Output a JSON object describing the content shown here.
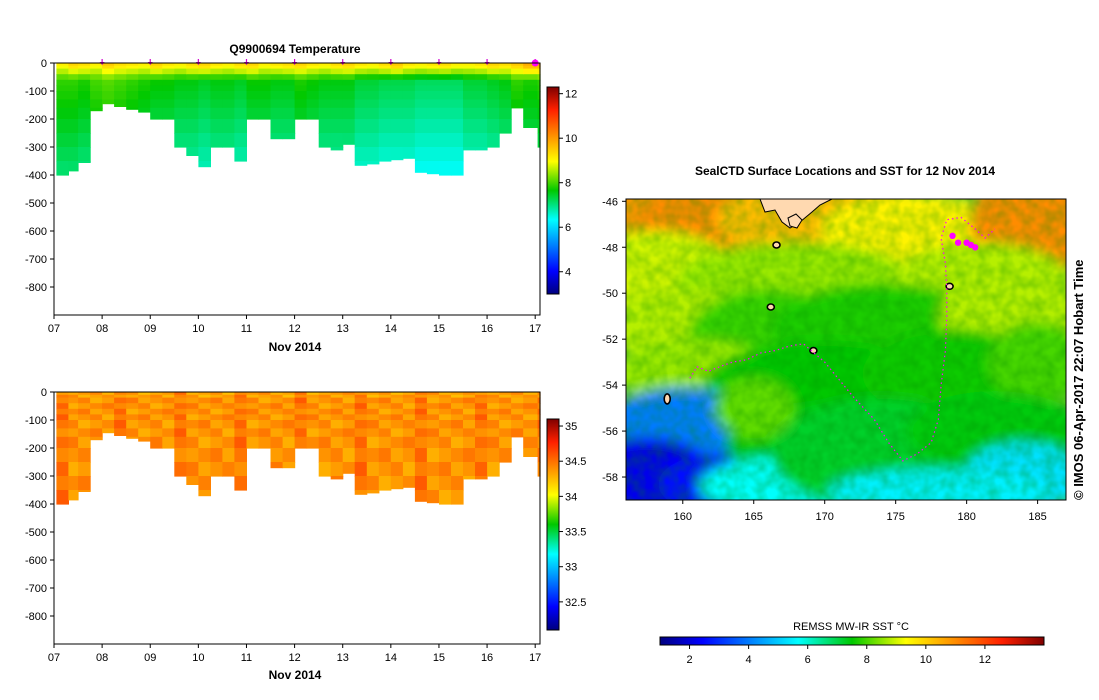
{
  "chart_data": [
    {
      "type": "heatmap",
      "title": "Q9900694  Temperature",
      "xlabel": "Nov 2014",
      "ylabel": "",
      "x_ticks": [
        "07",
        "08",
        "09",
        "10",
        "11",
        "12",
        "13",
        "14",
        "15",
        "16",
        "17"
      ],
      "x_range_days": [
        7.0,
        17.1
      ],
      "y_ticks": [
        0,
        -100,
        -200,
        -300,
        -400,
        -500,
        -600,
        -700,
        -800
      ],
      "ylim": [
        -900,
        0
      ],
      "colorbar": {
        "min": 3,
        "max": 12.3,
        "ticks": [
          4,
          6,
          8,
          10,
          12
        ]
      },
      "surfacing_markers": [
        8.0,
        9.0,
        10.0,
        11.0,
        12.0,
        13.0,
        14.0,
        15.0,
        16.0,
        17.0
      ],
      "profiles": [
        {
          "t": 7.05,
          "d": 400,
          "s": 9.2,
          "m": 7.9
        },
        {
          "t": 7.3,
          "d": 385,
          "s": 9.5,
          "m": 7.9
        },
        {
          "t": 7.5,
          "d": 355,
          "s": 9.4,
          "m": 7.8
        },
        {
          "t": 7.75,
          "d": 170,
          "s": 9.2,
          "m": 8.0
        },
        {
          "t": 8.0,
          "d": 145,
          "s": 9.6,
          "m": 8.1
        },
        {
          "t": 8.25,
          "d": 155,
          "s": 9.4,
          "m": 8.0
        },
        {
          "t": 8.5,
          "d": 165,
          "s": 9.3,
          "m": 7.9
        },
        {
          "t": 8.75,
          "d": 175,
          "s": 9.2,
          "m": 7.8
        },
        {
          "t": 9.0,
          "d": 200,
          "s": 9.5,
          "m": 7.7
        },
        {
          "t": 9.25,
          "d": 200,
          "s": 9.3,
          "m": 7.7
        },
        {
          "t": 9.5,
          "d": 300,
          "s": 9.2,
          "m": 7.6
        },
        {
          "t": 9.75,
          "d": 330,
          "s": 9.4,
          "m": 7.6
        },
        {
          "t": 10.0,
          "d": 370,
          "s": 9.5,
          "m": 7.5
        },
        {
          "t": 10.25,
          "d": 300,
          "s": 9.3,
          "m": 7.6
        },
        {
          "t": 10.5,
          "d": 300,
          "s": 9.2,
          "m": 7.6
        },
        {
          "t": 10.75,
          "d": 350,
          "s": 9.4,
          "m": 7.5
        },
        {
          "t": 11.0,
          "d": 200,
          "s": 9.5,
          "m": 7.7
        },
        {
          "t": 11.25,
          "d": 200,
          "s": 9.2,
          "m": 7.7
        },
        {
          "t": 11.5,
          "d": 270,
          "s": 9.3,
          "m": 7.6
        },
        {
          "t": 11.75,
          "d": 270,
          "s": 9.4,
          "m": 7.6
        },
        {
          "t": 12.0,
          "d": 200,
          "s": 9.5,
          "m": 7.8
        },
        {
          "t": 12.25,
          "d": 200,
          "s": 9.3,
          "m": 7.7
        },
        {
          "t": 12.5,
          "d": 300,
          "s": 9.2,
          "m": 7.6
        },
        {
          "t": 12.75,
          "d": 310,
          "s": 9.4,
          "m": 7.6
        },
        {
          "t": 13.0,
          "d": 290,
          "s": 9.5,
          "m": 7.6
        },
        {
          "t": 13.25,
          "d": 365,
          "s": 9.3,
          "m": 7.4
        },
        {
          "t": 13.5,
          "d": 360,
          "s": 9.2,
          "m": 7.4
        },
        {
          "t": 13.75,
          "d": 350,
          "s": 9.4,
          "m": 7.3
        },
        {
          "t": 14.0,
          "d": 345,
          "s": 9.6,
          "m": 7.3
        },
        {
          "t": 14.25,
          "d": 340,
          "s": 9.3,
          "m": 7.3
        },
        {
          "t": 14.5,
          "d": 390,
          "s": 9.2,
          "m": 7.2
        },
        {
          "t": 14.75,
          "d": 395,
          "s": 9.3,
          "m": 7.2
        },
        {
          "t": 15.0,
          "d": 400,
          "s": 9.4,
          "m": 7.2
        },
        {
          "t": 15.25,
          "d": 400,
          "s": 9.2,
          "m": 7.2
        },
        {
          "t": 15.5,
          "d": 310,
          "s": 9.2,
          "m": 7.4
        },
        {
          "t": 15.75,
          "d": 310,
          "s": 9.3,
          "m": 7.4
        },
        {
          "t": 16.0,
          "d": 300,
          "s": 9.5,
          "m": 7.5
        },
        {
          "t": 16.25,
          "d": 250,
          "s": 9.4,
          "m": 7.6
        },
        {
          "t": 16.5,
          "d": 160,
          "s": 9.6,
          "m": 7.9
        },
        {
          "t": 16.75,
          "d": 230,
          "s": 9.9,
          "m": 7.8
        },
        {
          "t": 17.05,
          "d": 300,
          "s": 10.0,
          "m": 7.9
        }
      ]
    },
    {
      "type": "heatmap",
      "title": "",
      "xlabel": "Nov 2014",
      "ylabel": "",
      "x_ticks": [
        "07",
        "08",
        "09",
        "10",
        "11",
        "12",
        "13",
        "14",
        "15",
        "16",
        "17"
      ],
      "x_range_days": [
        7.0,
        17.1
      ],
      "y_ticks": [
        0,
        -100,
        -200,
        -300,
        -400,
        -500,
        -600,
        -700,
        -800
      ],
      "ylim": [
        -900,
        0
      ],
      "colorbar": {
        "min": 32.1,
        "max": 35.1,
        "ticks": [
          "32.5",
          "33",
          "33.5",
          "34",
          "34.5",
          "35"
        ]
      },
      "profiles_ref": "same profiles as temperature panel",
      "salinity_mean": 34.35
    },
    {
      "type": "heatmap",
      "title": "SealCTD Surface Locations and SST for 12 Nov 2014",
      "xlabel": "",
      "ylabel": "",
      "x_ticks": [
        160,
        165,
        170,
        175,
        180,
        185
      ],
      "xlim": [
        156,
        187
      ],
      "y_ticks": [
        -46,
        -48,
        -50,
        -52,
        -54,
        -56,
        -58
      ],
      "ylim": [
        -59,
        -45.9
      ],
      "colorbar": {
        "label": "REMSS MW-IR SST °C",
        "min": 1,
        "max": 14,
        "ticks": [
          2,
          4,
          6,
          8,
          10,
          12
        ]
      },
      "track_color": "#ff00ff",
      "land_color": "#ffd9b0",
      "seal_track": [
        [
          160.5,
          -53.7
        ],
        [
          161.0,
          -53.2
        ],
        [
          161.8,
          -53.4
        ],
        [
          162.6,
          -53.2
        ],
        [
          163.5,
          -53.0
        ],
        [
          164.5,
          -52.9
        ],
        [
          165.5,
          -52.6
        ],
        [
          166.5,
          -52.5
        ],
        [
          167.5,
          -52.3
        ],
        [
          168.5,
          -52.2
        ],
        [
          170.0,
          -53.0
        ],
        [
          172.0,
          -54.5
        ],
        [
          173.5,
          -55.5
        ],
        [
          174.5,
          -56.5
        ],
        [
          175.5,
          -57.3
        ],
        [
          176.5,
          -57.0
        ],
        [
          177.5,
          -56.5
        ],
        [
          178.0,
          -55.5
        ],
        [
          178.2,
          -54.0
        ],
        [
          178.5,
          -52.5
        ],
        [
          178.6,
          -51.0
        ],
        [
          178.6,
          -49.8
        ],
        [
          178.5,
          -48.7
        ],
        [
          178.2,
          -47.6
        ],
        [
          178.6,
          -46.8
        ],
        [
          179.6,
          -46.7
        ],
        [
          180.6,
          -47.2
        ],
        [
          181.3,
          -47.6
        ],
        [
          182.0,
          -47.2
        ]
      ],
      "seal_positions": [
        [
          179.0,
          -47.5
        ],
        [
          179.4,
          -47.8
        ],
        [
          180.0,
          -47.8
        ],
        [
          180.3,
          -47.9
        ],
        [
          180.6,
          -48.0
        ]
      ]
    }
  ],
  "credit_text": "©  IMOS 06-Apr-2017 22:07 Hobart Time"
}
